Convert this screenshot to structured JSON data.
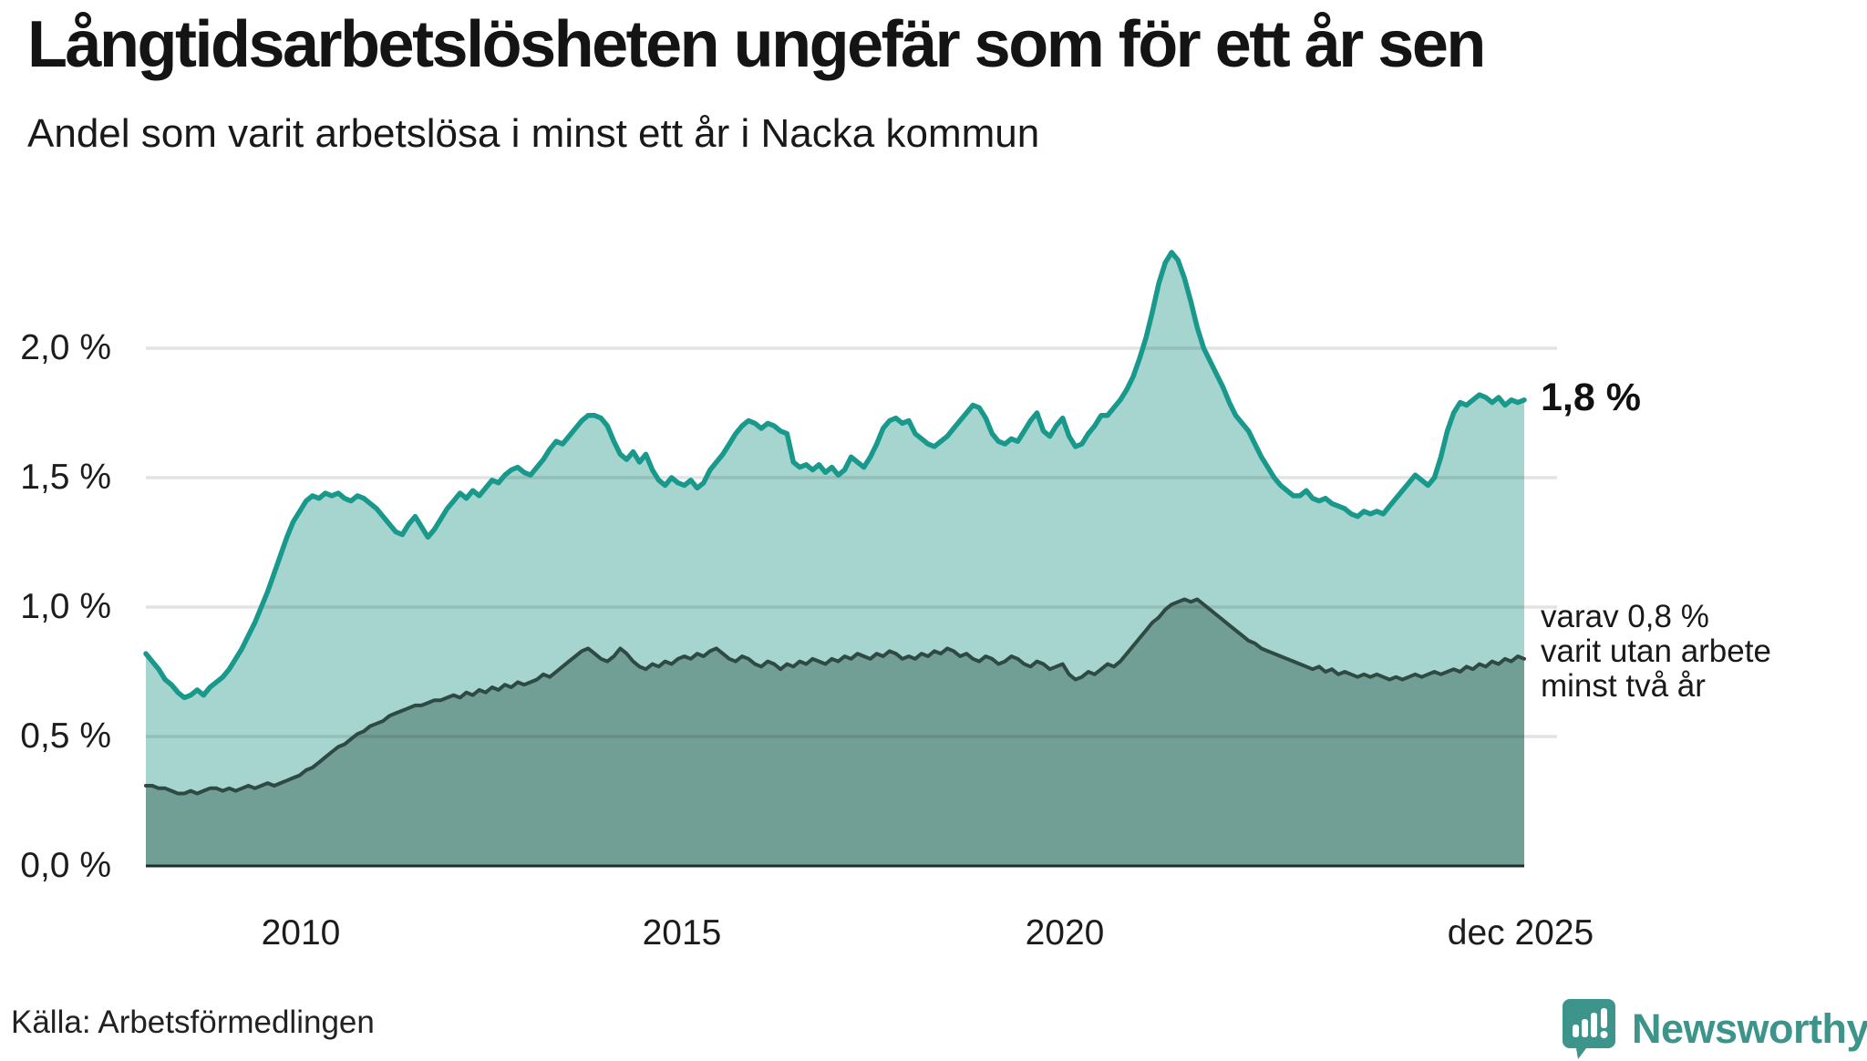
{
  "header": {
    "title": "Långtidsarbetslösheten ungefär som för ett år sen",
    "subtitle": "Andel som varit arbetslösa i minst ett år i Nacka kommun"
  },
  "source": {
    "label": "Källa: Arbetsförmedlingen"
  },
  "branding": {
    "name": "Newsworthy",
    "logo_icon": "speech-bubble-bar-chart-icon",
    "color": "#3D948A"
  },
  "colors": {
    "series_one_line": "#18998B",
    "series_one_fill": "#A5D5CE",
    "series_two_line": "#2E4A43",
    "series_two_fill": "#719F96",
    "gridline": "rgba(25,25,25,0.12)",
    "baseline": "#1E2D29",
    "text": "#141414"
  },
  "chart_data": {
    "type": "area",
    "title": "Långtidsarbetslösheten ungefär som för ett år sen",
    "subtitle": "Andel som varit arbetslösa i minst ett år i Nacka kommun",
    "unit": "%",
    "frequency": "monthly",
    "x_start": "2008-01",
    "x_end": "2025-12",
    "ylim": [
      0,
      2.4
    ],
    "grid": true,
    "y_tick_labels_top_to_bottom": [
      "2,0 %",
      "1,5 %",
      "1,0 %",
      "0,5 %",
      "0,0 %"
    ],
    "y_tick_values": [
      2.0,
      1.5,
      1.0,
      0.5,
      0.0
    ],
    "x_tick_labels": [
      "2010",
      "2015",
      "2020",
      "dec 2025"
    ],
    "annotations": {
      "one_year_end_value": "1,8 %",
      "two_year_end_lines": [
        "varav 0,8 %",
        "varit utan arbete",
        "minst två år"
      ]
    },
    "series": [
      {
        "name": "Andel arbetslösa minst ett år",
        "color": "#18998B",
        "fill": "#A5D5CE",
        "end_value": 1.8,
        "values": [
          0.82,
          0.79,
          0.76,
          0.72,
          0.7,
          0.67,
          0.65,
          0.66,
          0.68,
          0.66,
          0.69,
          0.71,
          0.73,
          0.76,
          0.8,
          0.84,
          0.89,
          0.94,
          1.0,
          1.06,
          1.13,
          1.2,
          1.27,
          1.33,
          1.37,
          1.41,
          1.43,
          1.42,
          1.44,
          1.43,
          1.44,
          1.42,
          1.41,
          1.43,
          1.42,
          1.4,
          1.38,
          1.35,
          1.32,
          1.29,
          1.28,
          1.32,
          1.35,
          1.31,
          1.27,
          1.3,
          1.34,
          1.38,
          1.41,
          1.44,
          1.42,
          1.45,
          1.43,
          1.46,
          1.49,
          1.48,
          1.51,
          1.53,
          1.54,
          1.52,
          1.51,
          1.54,
          1.57,
          1.61,
          1.64,
          1.63,
          1.66,
          1.69,
          1.72,
          1.74,
          1.74,
          1.73,
          1.7,
          1.64,
          1.59,
          1.57,
          1.6,
          1.56,
          1.59,
          1.53,
          1.49,
          1.47,
          1.5,
          1.48,
          1.47,
          1.49,
          1.46,
          1.48,
          1.53,
          1.56,
          1.59,
          1.63,
          1.67,
          1.7,
          1.72,
          1.71,
          1.69,
          1.71,
          1.7,
          1.68,
          1.67,
          1.56,
          1.54,
          1.55,
          1.53,
          1.55,
          1.52,
          1.54,
          1.51,
          1.53,
          1.58,
          1.56,
          1.54,
          1.58,
          1.63,
          1.69,
          1.72,
          1.73,
          1.71,
          1.72,
          1.67,
          1.65,
          1.63,
          1.62,
          1.64,
          1.66,
          1.69,
          1.72,
          1.75,
          1.78,
          1.77,
          1.73,
          1.67,
          1.64,
          1.63,
          1.65,
          1.64,
          1.68,
          1.72,
          1.75,
          1.68,
          1.66,
          1.7,
          1.73,
          1.66,
          1.62,
          1.63,
          1.67,
          1.7,
          1.74,
          1.74,
          1.77,
          1.8,
          1.84,
          1.89,
          1.96,
          2.04,
          2.14,
          2.25,
          2.33,
          2.37,
          2.34,
          2.27,
          2.18,
          2.08,
          2.0,
          1.95,
          1.9,
          1.85,
          1.79,
          1.74,
          1.71,
          1.68,
          1.63,
          1.58,
          1.54,
          1.5,
          1.47,
          1.45,
          1.43,
          1.43,
          1.45,
          1.42,
          1.41,
          1.42,
          1.4,
          1.39,
          1.38,
          1.36,
          1.35,
          1.37,
          1.36,
          1.37,
          1.36,
          1.39,
          1.42,
          1.45,
          1.48,
          1.51,
          1.49,
          1.47,
          1.5,
          1.58,
          1.68,
          1.75,
          1.79,
          1.78,
          1.8,
          1.82,
          1.81,
          1.79,
          1.81,
          1.78,
          1.8,
          1.79,
          1.8
        ]
      },
      {
        "name": "varav utan arbete minst två år",
        "color": "#2E4A43",
        "fill": "#719F96",
        "end_value": 0.8,
        "values": [
          0.31,
          0.31,
          0.3,
          0.3,
          0.29,
          0.28,
          0.28,
          0.29,
          0.28,
          0.29,
          0.3,
          0.3,
          0.29,
          0.3,
          0.29,
          0.3,
          0.31,
          0.3,
          0.31,
          0.32,
          0.31,
          0.32,
          0.33,
          0.34,
          0.35,
          0.37,
          0.38,
          0.4,
          0.42,
          0.44,
          0.46,
          0.47,
          0.49,
          0.51,
          0.52,
          0.54,
          0.55,
          0.56,
          0.58,
          0.59,
          0.6,
          0.61,
          0.62,
          0.62,
          0.63,
          0.64,
          0.64,
          0.65,
          0.66,
          0.65,
          0.67,
          0.66,
          0.68,
          0.67,
          0.69,
          0.68,
          0.7,
          0.69,
          0.71,
          0.7,
          0.71,
          0.72,
          0.74,
          0.73,
          0.75,
          0.77,
          0.79,
          0.81,
          0.83,
          0.84,
          0.82,
          0.8,
          0.79,
          0.81,
          0.84,
          0.82,
          0.79,
          0.77,
          0.76,
          0.78,
          0.77,
          0.79,
          0.78,
          0.8,
          0.81,
          0.8,
          0.82,
          0.81,
          0.83,
          0.84,
          0.82,
          0.8,
          0.79,
          0.81,
          0.8,
          0.78,
          0.77,
          0.79,
          0.78,
          0.76,
          0.78,
          0.77,
          0.79,
          0.78,
          0.8,
          0.79,
          0.78,
          0.8,
          0.79,
          0.81,
          0.8,
          0.82,
          0.81,
          0.8,
          0.82,
          0.81,
          0.83,
          0.82,
          0.8,
          0.81,
          0.8,
          0.82,
          0.81,
          0.83,
          0.82,
          0.84,
          0.83,
          0.81,
          0.82,
          0.8,
          0.79,
          0.81,
          0.8,
          0.78,
          0.79,
          0.81,
          0.8,
          0.78,
          0.77,
          0.79,
          0.78,
          0.76,
          0.77,
          0.78,
          0.74,
          0.72,
          0.73,
          0.75,
          0.74,
          0.76,
          0.78,
          0.77,
          0.79,
          0.82,
          0.85,
          0.88,
          0.91,
          0.94,
          0.96,
          0.99,
          1.01,
          1.02,
          1.03,
          1.02,
          1.03,
          1.01,
          0.99,
          0.97,
          0.95,
          0.93,
          0.91,
          0.89,
          0.87,
          0.86,
          0.84,
          0.83,
          0.82,
          0.81,
          0.8,
          0.79,
          0.78,
          0.77,
          0.76,
          0.77,
          0.75,
          0.76,
          0.74,
          0.75,
          0.74,
          0.73,
          0.74,
          0.73,
          0.74,
          0.73,
          0.72,
          0.73,
          0.72,
          0.73,
          0.74,
          0.73,
          0.74,
          0.75,
          0.74,
          0.75,
          0.76,
          0.75,
          0.77,
          0.76,
          0.78,
          0.77,
          0.79,
          0.78,
          0.8,
          0.79,
          0.81,
          0.8
        ]
      }
    ]
  }
}
